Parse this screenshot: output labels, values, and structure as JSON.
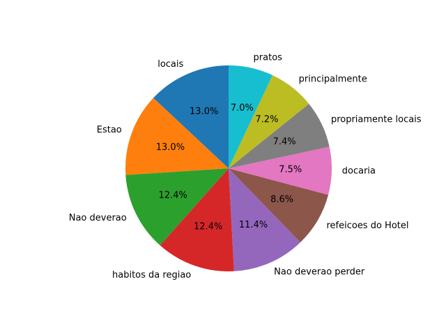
{
  "chart_data": {
    "type": "pie",
    "title": "",
    "start_angle_deg": 90,
    "direction": "counterclockwise",
    "slices": [
      {
        "label": "locais",
        "value": 13.0,
        "pct_label": "13.0%",
        "color": "#1f77b4"
      },
      {
        "label": "Estao",
        "value": 13.0,
        "pct_label": "13.0%",
        "color": "#ff7f0e"
      },
      {
        "label": "Nao deverao",
        "value": 12.4,
        "pct_label": "12.4%",
        "color": "#2ca02c"
      },
      {
        "label": "habitos da regiao",
        "value": 12.4,
        "pct_label": "12.4%",
        "color": "#d62728"
      },
      {
        "label": "Nao deverao perder",
        "value": 11.4,
        "pct_label": "11.4%",
        "color": "#9467bd"
      },
      {
        "label": "refeicoes do Hotel",
        "value": 8.6,
        "pct_label": "8.6%",
        "color": "#8c564b"
      },
      {
        "label": "docaria",
        "value": 7.5,
        "pct_label": "7.5%",
        "color": "#e377c2"
      },
      {
        "label": "propriamente locais",
        "value": 7.4,
        "pct_label": "7.4%",
        "color": "#7f7f7f"
      },
      {
        "label": "principalmente",
        "value": 7.2,
        "pct_label": "7.2%",
        "color": "#bcbd22"
      },
      {
        "label": "pratos",
        "value": 7.0,
        "pct_label": "7.0%",
        "color": "#17becf"
      }
    ]
  }
}
